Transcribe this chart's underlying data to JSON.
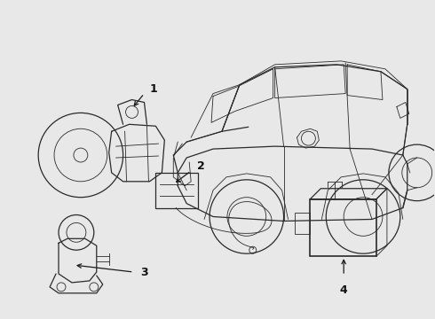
{
  "bg_color": "#e8e8e8",
  "line_color": "#2a2a2a",
  "arrow_color": "#1a1a1a",
  "lw_main": 0.9,
  "lw_thin": 0.6,
  "label_fontsize": 9
}
